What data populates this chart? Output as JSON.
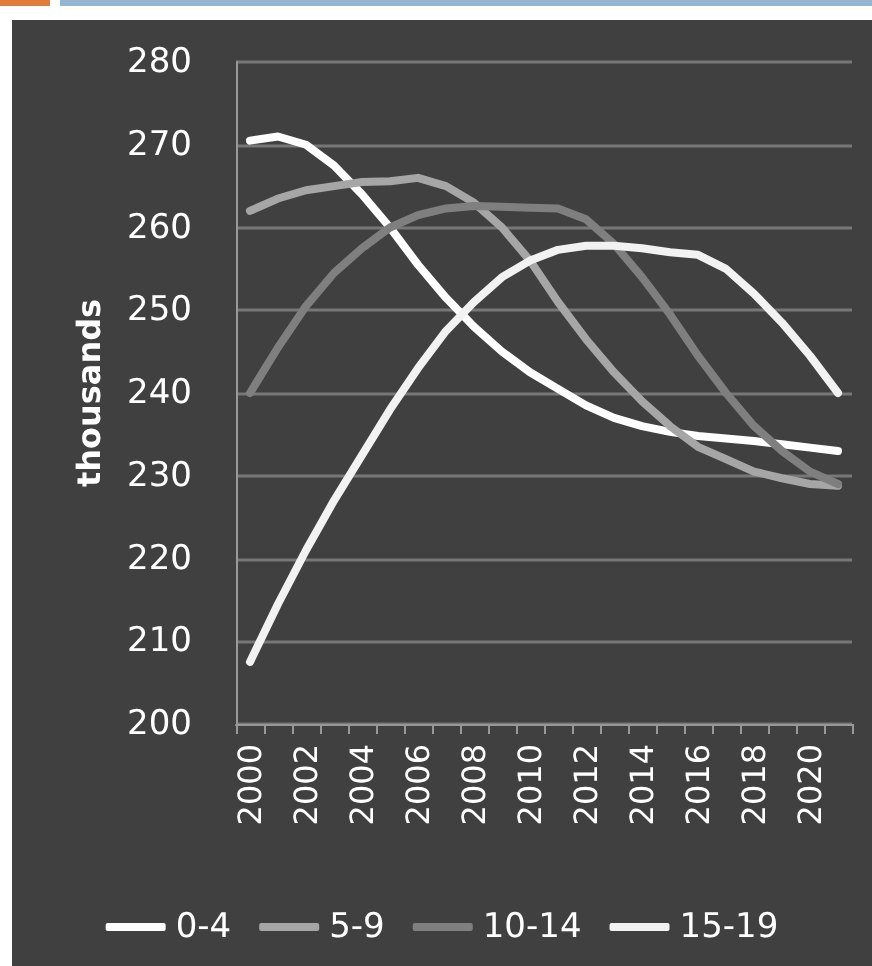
{
  "chart_data": {
    "type": "line",
    "ylabel": "thousands",
    "categories": [
      "2000",
      null,
      "2002",
      null,
      "2004",
      null,
      "2006",
      null,
      "2008",
      null,
      "2010",
      null,
      "2012",
      null,
      "2014",
      null,
      "2016",
      null,
      "2018",
      null,
      "2020",
      null
    ],
    "series": [
      {
        "name": "0-4",
        "color": "#ffffff",
        "values": [
          270.5,
          271,
          270,
          267.5,
          264,
          260,
          255.5,
          251.5,
          248,
          245,
          242.5,
          240.5,
          238.5,
          237,
          236,
          235.3,
          234.8,
          234.5,
          234.2,
          233.8,
          233.4,
          233
        ]
      },
      {
        "name": "5-9",
        "color": "#a6a6a6",
        "values": [
          262,
          263.5,
          264.5,
          265,
          265.5,
          265.6,
          266,
          265,
          263,
          260,
          256,
          251,
          246.5,
          242.5,
          239,
          236,
          233.5,
          232,
          230.5,
          229.7,
          229,
          228.8
        ]
      },
      {
        "name": "10-14",
        "color": "#7f7f7f",
        "values": [
          240,
          245.5,
          250.5,
          254.5,
          257.5,
          260,
          261.5,
          262.3,
          262.6,
          262.5,
          262.4,
          262.3,
          261,
          258,
          254,
          249.5,
          244.5,
          240,
          236,
          233,
          230.5,
          229
        ]
      },
      {
        "name": "15-19",
        "color": "#f2f2f2",
        "values": [
          207.5,
          214.5,
          221,
          227,
          232.5,
          238,
          243,
          247.5,
          251,
          254,
          256,
          257.3,
          257.8,
          257.8,
          257.5,
          257,
          256.7,
          255,
          252,
          248.5,
          244.5,
          240
        ]
      }
    ],
    "ylim": [
      200,
      280
    ],
    "yticks": [
      200,
      210,
      220,
      230,
      240,
      250,
      260,
      270,
      280
    ],
    "grid": "y",
    "legend": "bottom",
    "marker": "none",
    "line_style": "solid"
  }
}
